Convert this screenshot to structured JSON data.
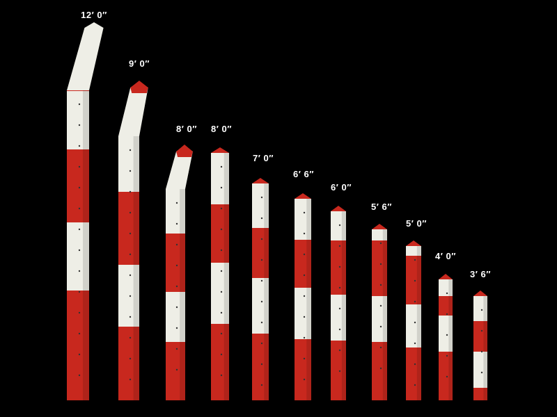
{
  "colors": {
    "background": "#000000",
    "red": "#c8281e",
    "white": "#eeeee6",
    "label": "#ffffff"
  },
  "posts": [
    {
      "label": "12′ 0″",
      "bands": [
        "white",
        "red",
        "white",
        "red",
        "white",
        "red"
      ],
      "bent": true
    },
    {
      "label": "9′ 0″",
      "bands": [
        "white",
        "white",
        "red",
        "white",
        "red"
      ],
      "bent": true
    },
    {
      "label": "8′ 0″",
      "bands": [
        "white",
        "white",
        "red",
        "white",
        "red"
      ],
      "bent": true
    },
    {
      "label": "8′ 0″",
      "bands": [
        "white",
        "red",
        "white",
        "red"
      ],
      "bent": false
    },
    {
      "label": "7′ 0″",
      "bands": [
        "white",
        "red",
        "white",
        "red"
      ],
      "bent": false
    },
    {
      "label": "6′ 6″",
      "bands": [
        "white",
        "red",
        "white",
        "red"
      ],
      "bent": false
    },
    {
      "label": "6′ 0″",
      "bands": [
        "white",
        "red",
        "white",
        "red"
      ],
      "bent": false
    },
    {
      "label": "5′ 6″",
      "bands": [
        "white",
        "red",
        "white",
        "red"
      ],
      "bent": false
    },
    {
      "label": "5′ 0″",
      "bands": [
        "white",
        "red",
        "white",
        "red"
      ],
      "bent": false
    },
    {
      "label": "4′ 0″",
      "bands": [
        "white",
        "red",
        "white",
        "red"
      ],
      "bent": false
    },
    {
      "label": "3′ 6″",
      "bands": [
        "white",
        "red",
        "white",
        "red"
      ],
      "bent": false
    }
  ]
}
